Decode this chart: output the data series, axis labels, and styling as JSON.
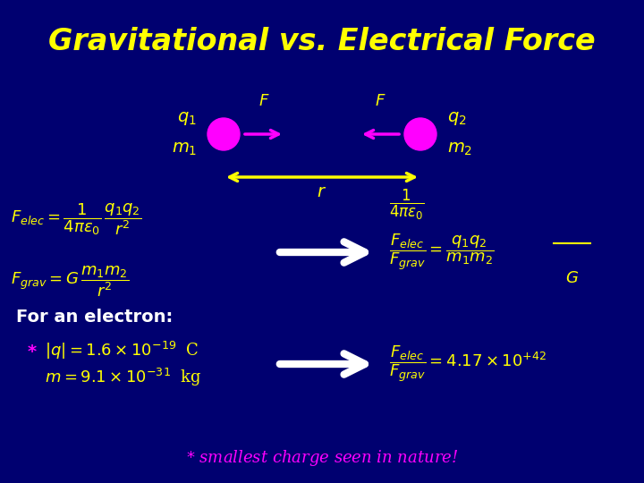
{
  "title": "Gravitational vs. Electrical Force",
  "title_color": "#FFFF00",
  "title_fontsize": 24,
  "bg_color": "#000070",
  "ball_color": "#FF00FF",
  "arrow_color": "#FF00FF",
  "r_arrow_color": "#FFFF00",
  "text_color": "#FFFF00",
  "white": "#FFFFFF",
  "eq_color": "#FFFF00",
  "bottom_text_color": "#FF00FF",
  "magenta_star": "#FF00FF"
}
